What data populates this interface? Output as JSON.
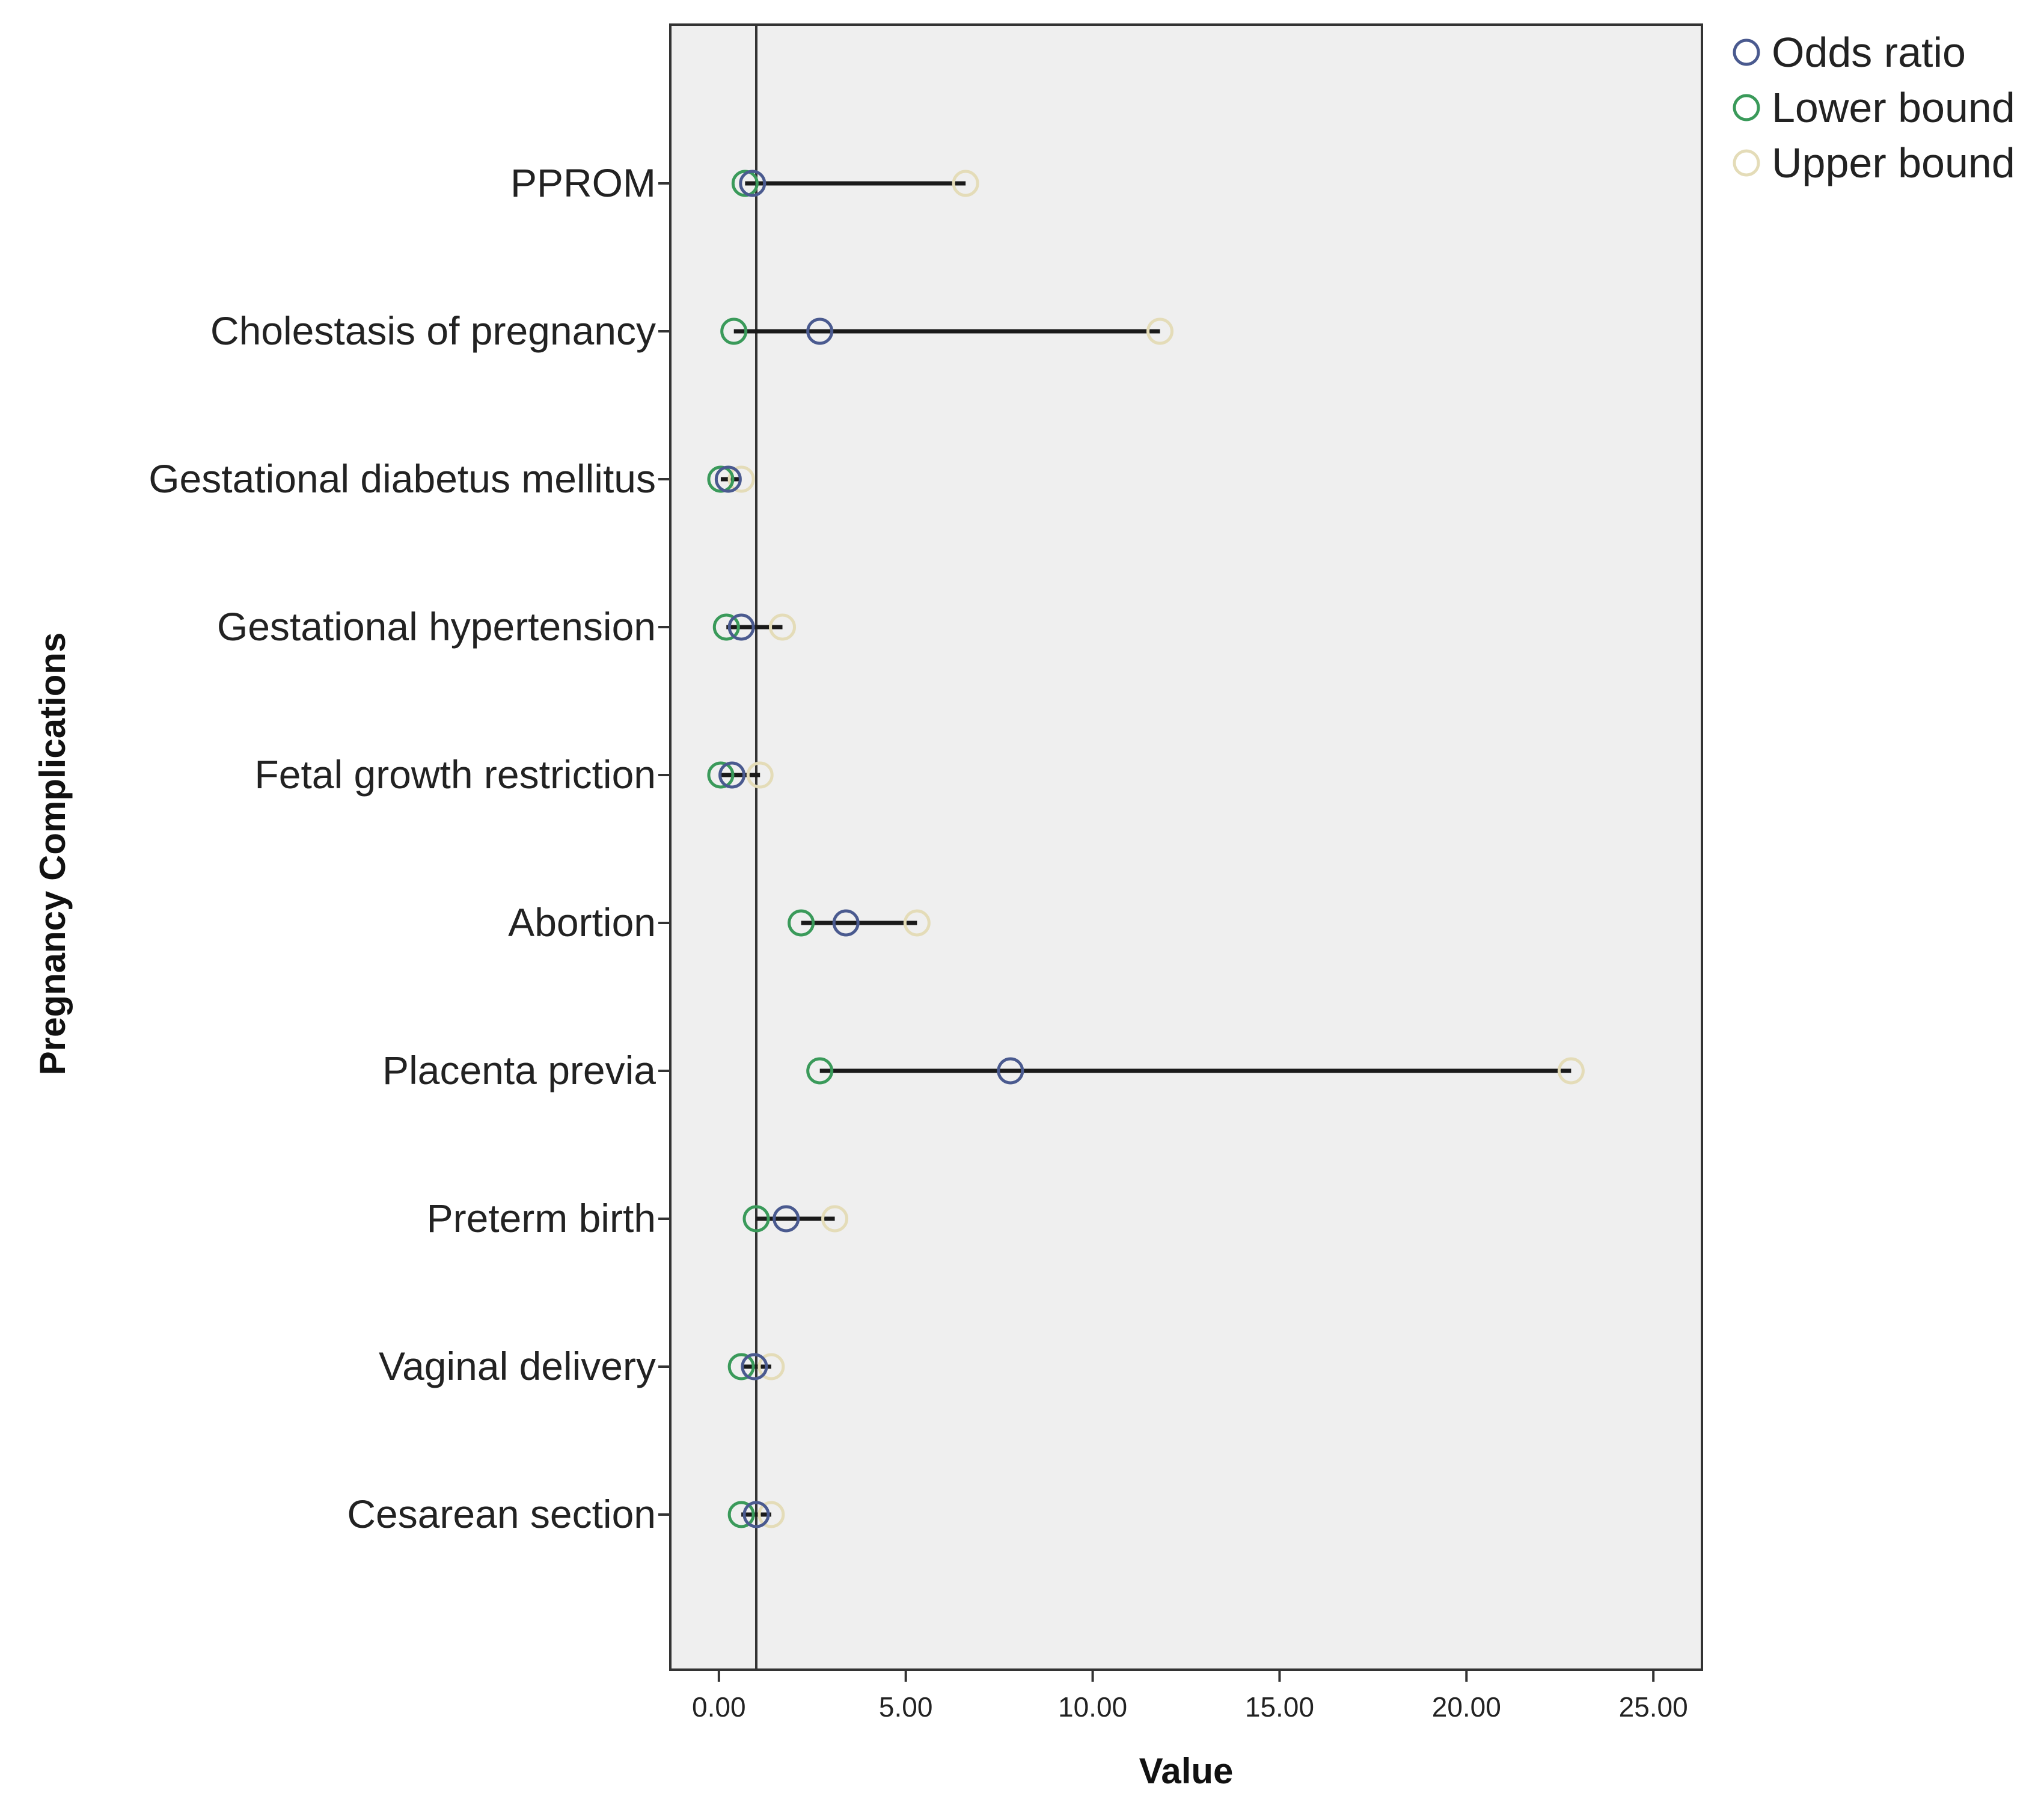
{
  "chart_data": {
    "type": "scatter",
    "subtype": "forest-plot",
    "xlabel": "Value",
    "ylabel": "Pregnancy Complications",
    "xlim": [
      -1.3,
      26.3
    ],
    "xticks": [
      0,
      5,
      10,
      15,
      20,
      25
    ],
    "xtick_labels": [
      "0.00",
      "5.00",
      "10.00",
      "15.00",
      "20.00",
      "25.00"
    ],
    "reference_line": 1.0,
    "grid": false,
    "legend_position": "top-right",
    "categories": [
      "PPROM",
      "Cholestasis of pregnancy",
      "Gestational diabetus mellitus",
      "Gestational hypertension",
      "Fetal growth restriction",
      "Abortion",
      "Placenta previa",
      "Preterm birth",
      "Vaginal delivery",
      "Cesarean section"
    ],
    "series": [
      {
        "name": "Odds ratio",
        "color": "#4a5a8f",
        "values": [
          0.9,
          2.7,
          0.25,
          0.6,
          0.35,
          3.4,
          7.8,
          1.8,
          0.95,
          1.0
        ]
      },
      {
        "name": "Lower bound",
        "color": "#3a9a5a",
        "values": [
          0.7,
          0.4,
          0.05,
          0.2,
          0.05,
          2.2,
          2.7,
          1.0,
          0.6,
          0.6
        ]
      },
      {
        "name": "Upper bound",
        "color": "#e4dcb8",
        "values": [
          6.6,
          11.8,
          0.6,
          1.7,
          1.1,
          5.3,
          22.8,
          3.1,
          1.4,
          1.4
        ]
      }
    ],
    "colors": {
      "plot_background": "#efefef",
      "frame": "#333333",
      "ci_line": "#1a1a1a",
      "reference_line": "#333333"
    }
  }
}
